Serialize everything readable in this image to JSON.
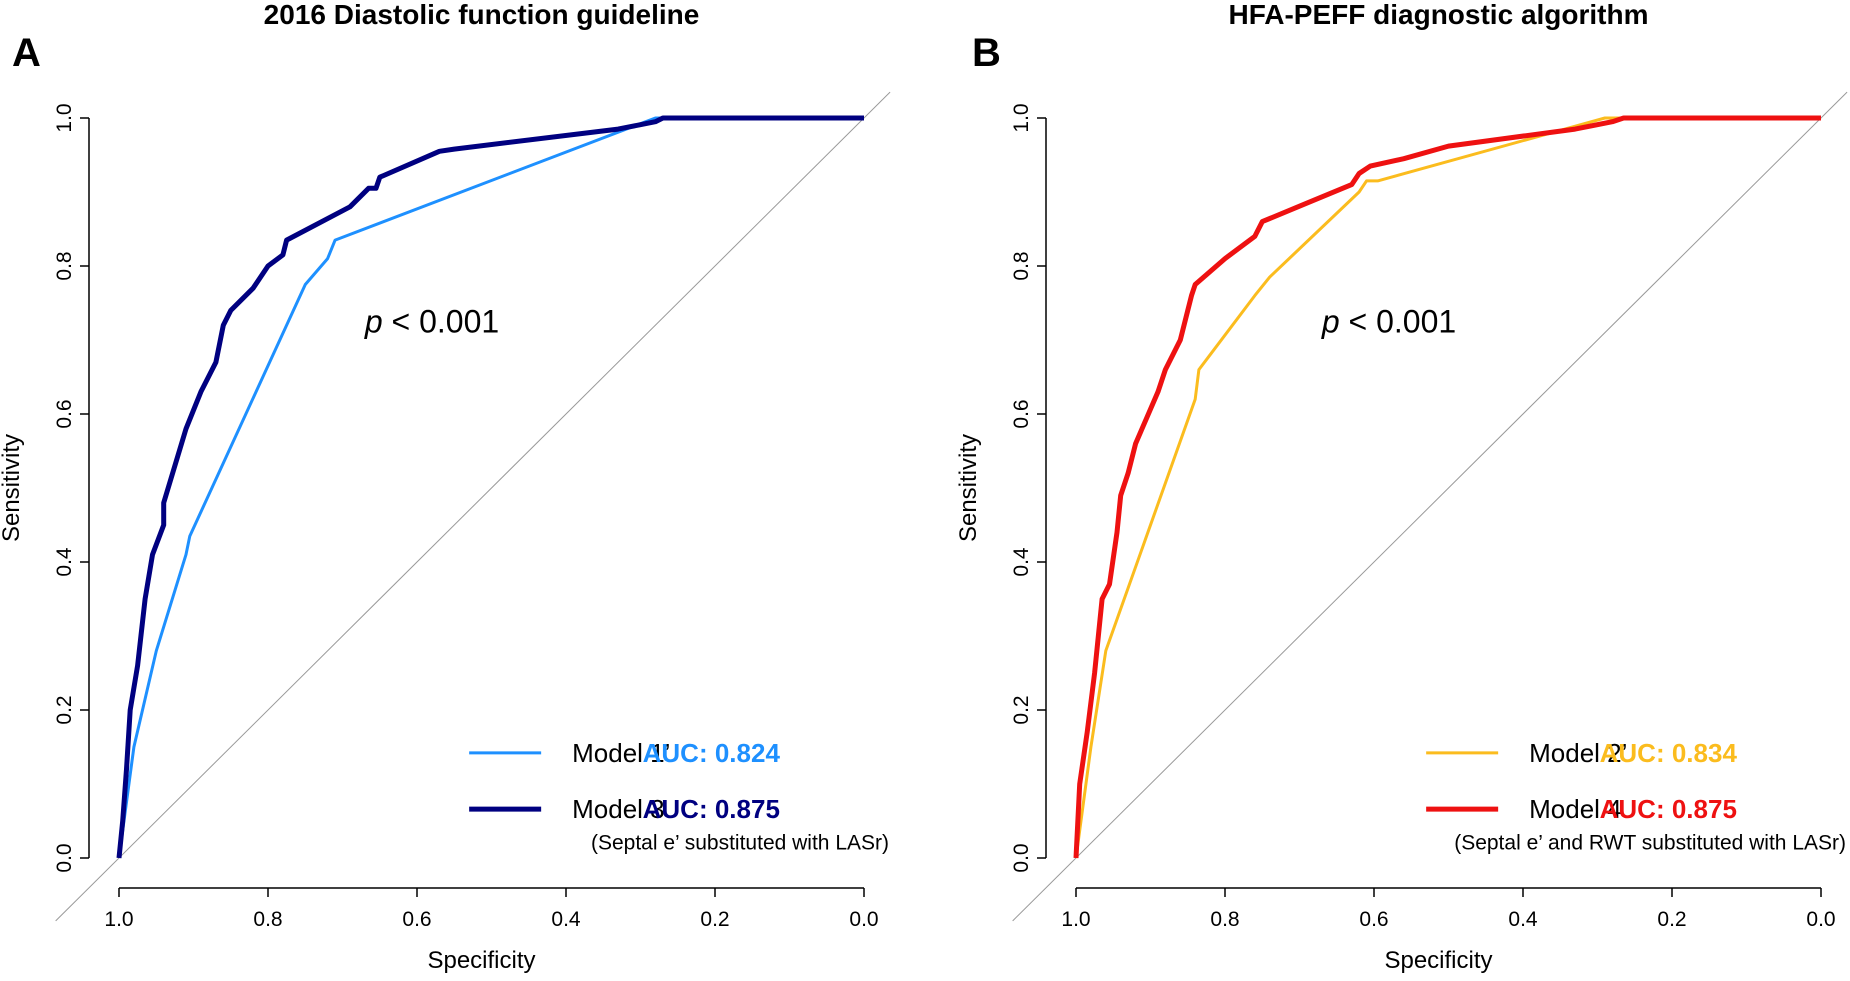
{
  "chart_data": [
    {
      "type": "line",
      "panel_label": "A",
      "title": "2016 Diastolic function guideline",
      "xlabel": "Specificity",
      "ylabel": "Sensitivity",
      "xlim": [
        1.0,
        0.0
      ],
      "ylim": [
        0.0,
        1.0
      ],
      "xticks": [
        "1.0",
        "0.8",
        "0.6",
        "0.4",
        "0.2",
        "0.0"
      ],
      "yticks": [
        "0.0",
        "0.2",
        "0.4",
        "0.6",
        "0.8",
        "1.0"
      ],
      "annotation": {
        "p_italic": "p",
        "p_rest": " < 0.001"
      },
      "legend_note": "(Septal e’ substituted with LASr)",
      "legend_position": "bottom-right",
      "series": [
        {
          "name": "Model 1’",
          "auc": "AUC: 0.824",
          "color": "#1e90ff",
          "width": 3,
          "points": [
            [
              1,
              0
            ],
            [
              0.98,
              0.15
            ],
            [
              0.95,
              0.28
            ],
            [
              0.91,
              0.41
            ],
            [
              0.905,
              0.435
            ],
            [
              0.75,
              0.775
            ],
            [
              0.72,
              0.81
            ],
            [
              0.71,
              0.835
            ],
            [
              0.28,
              1
            ],
            [
              0,
              1
            ]
          ]
        },
        {
          "name": "Model 3",
          "auc": "AUC: 0.875",
          "color": "#000080",
          "width": 5,
          "points": [
            [
              1,
              0
            ],
            [
              0.995,
              0.05
            ],
            [
              0.99,
              0.12
            ],
            [
              0.985,
              0.2
            ],
            [
              0.975,
              0.26
            ],
            [
              0.965,
              0.35
            ],
            [
              0.955,
              0.41
            ],
            [
              0.94,
              0.45
            ],
            [
              0.94,
              0.48
            ],
            [
              0.91,
              0.58
            ],
            [
              0.89,
              0.63
            ],
            [
              0.87,
              0.67
            ],
            [
              0.86,
              0.72
            ],
            [
              0.85,
              0.74
            ],
            [
              0.82,
              0.77
            ],
            [
              0.8,
              0.8
            ],
            [
              0.78,
              0.815
            ],
            [
              0.775,
              0.835
            ],
            [
              0.69,
              0.88
            ],
            [
              0.665,
              0.905
            ],
            [
              0.655,
              0.905
            ],
            [
              0.65,
              0.92
            ],
            [
              0.57,
              0.955
            ],
            [
              0.55,
              0.958
            ],
            [
              0.33,
              0.985
            ],
            [
              0.28,
              0.995
            ],
            [
              0.27,
              1
            ],
            [
              0,
              1
            ]
          ]
        }
      ]
    },
    {
      "type": "line",
      "panel_label": "B",
      "title": "HFA-PEFF diagnostic algorithm",
      "xlabel": "Specificity",
      "ylabel": "Sensitivity",
      "xlim": [
        1.0,
        0.0
      ],
      "ylim": [
        0.0,
        1.0
      ],
      "xticks": [
        "1.0",
        "0.8",
        "0.6",
        "0.4",
        "0.2",
        "0.0"
      ],
      "yticks": [
        "0.0",
        "0.2",
        "0.4",
        "0.6",
        "0.8",
        "1.0"
      ],
      "annotation": {
        "p_italic": "p",
        "p_rest": " < 0.001"
      },
      "legend_note": "(Septal e’ and RWT substituted with LASr)",
      "legend_position": "bottom-right",
      "series": [
        {
          "name": "Model 2’",
          "auc": "AUC: 0.834",
          "color": "#fbbc1e",
          "width": 3,
          "points": [
            [
              1,
              0
            ],
            [
              0.98,
              0.15
            ],
            [
              0.96,
              0.28
            ],
            [
              0.84,
              0.62
            ],
            [
              0.835,
              0.66
            ],
            [
              0.82,
              0.68
            ],
            [
              0.76,
              0.76
            ],
            [
              0.74,
              0.785
            ],
            [
              0.62,
              0.9
            ],
            [
              0.61,
              0.915
            ],
            [
              0.595,
              0.915
            ],
            [
              0.29,
              1
            ],
            [
              0,
              1
            ]
          ]
        },
        {
          "name": "Model 4",
          "auc": "AUC: 0.875",
          "color": "#ee1111",
          "width": 5,
          "points": [
            [
              1,
              0
            ],
            [
              0.995,
              0.1
            ],
            [
              0.985,
              0.17
            ],
            [
              0.975,
              0.25
            ],
            [
              0.965,
              0.35
            ],
            [
              0.955,
              0.37
            ],
            [
              0.945,
              0.44
            ],
            [
              0.94,
              0.49
            ],
            [
              0.93,
              0.52
            ],
            [
              0.92,
              0.56
            ],
            [
              0.89,
              0.63
            ],
            [
              0.88,
              0.66
            ],
            [
              0.86,
              0.7
            ],
            [
              0.845,
              0.76
            ],
            [
              0.84,
              0.775
            ],
            [
              0.8,
              0.81
            ],
            [
              0.76,
              0.84
            ],
            [
              0.75,
              0.86
            ],
            [
              0.69,
              0.885
            ],
            [
              0.63,
              0.91
            ],
            [
              0.62,
              0.925
            ],
            [
              0.605,
              0.935
            ],
            [
              0.56,
              0.945
            ],
            [
              0.5,
              0.962
            ],
            [
              0.33,
              0.985
            ],
            [
              0.28,
              0.995
            ],
            [
              0.265,
              1
            ],
            [
              0,
              1
            ]
          ]
        }
      ]
    }
  ]
}
